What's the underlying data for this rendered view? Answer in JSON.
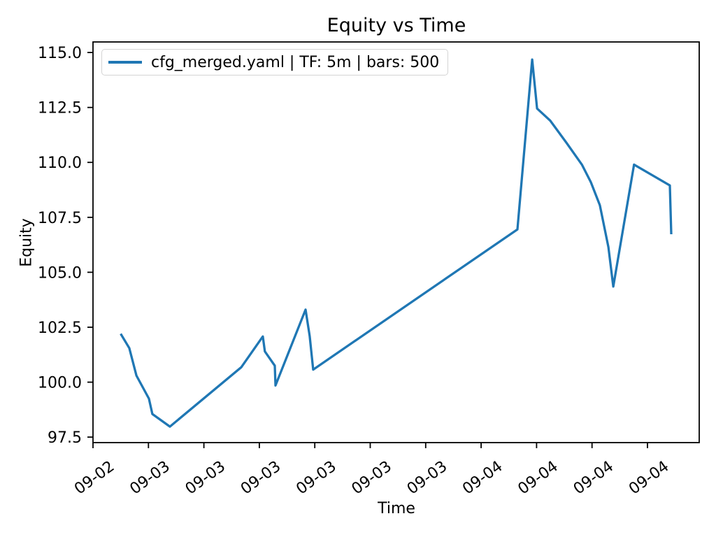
{
  "chart_data": {
    "type": "line",
    "title": "Equity vs Time",
    "xlabel": "Time",
    "ylabel": "Equity",
    "legend_position": "upper left",
    "grid": false,
    "line_color": "#1f77b4",
    "x_tick_labels": [
      "09-02",
      "09-03",
      "09-03",
      "09-03",
      "09-03",
      "09-03",
      "09-03",
      "09-04",
      "09-04",
      "09-04",
      "09-04"
    ],
    "x_tick_times": [
      "09-02 20:00",
      "09-03 00:00",
      "09-03 04:00",
      "09-03 08:00",
      "09-03 12:00",
      "09-03 16:00",
      "09-03 20:00",
      "09-04 00:00",
      "09-04 04:00",
      "09-04 08:00",
      "09-04 12:00"
    ],
    "y_ticks": [
      97.5,
      100.0,
      102.5,
      105.0,
      107.5,
      110.0,
      112.5,
      115.0
    ],
    "y_tick_labels": [
      "97.5",
      "100.0",
      "102.5",
      "105.0",
      "107.5",
      "110.0",
      "112.5",
      "115.0"
    ],
    "xlim": [
      "09-02 20:00",
      "09-04 15:44"
    ],
    "ylim": [
      97.25,
      115.48
    ],
    "series": [
      {
        "name": "cfg_merged.yaml | TF: 5m | bars: 500",
        "points": [
          [
            "09-02 22:00",
            102.2
          ],
          [
            "09-02 22:37",
            101.55
          ],
          [
            "09-02 23:08",
            100.3
          ],
          [
            "09-03 00:02",
            99.25
          ],
          [
            "09-03 00:17",
            98.55
          ],
          [
            "09-03 01:33",
            97.98
          ],
          [
            "09-03 06:42",
            100.68
          ],
          [
            "09-03 08:15",
            102.08
          ],
          [
            "09-03 08:24",
            101.4
          ],
          [
            "09-03 09:07",
            100.75
          ],
          [
            "09-03 09:10",
            99.85
          ],
          [
            "09-03 11:20",
            103.3
          ],
          [
            "09-03 11:38",
            102.1
          ],
          [
            "09-03 11:53",
            100.57
          ],
          [
            "09-04 02:37",
            106.95
          ],
          [
            "09-04 03:41",
            114.68
          ],
          [
            "09-04 04:02",
            112.45
          ],
          [
            "09-04 04:59",
            111.9
          ],
          [
            "09-04 06:09",
            110.9
          ],
          [
            "09-04 07:16",
            109.9
          ],
          [
            "09-04 07:55",
            109.1
          ],
          [
            "09-04 08:34",
            108.05
          ],
          [
            "09-04 09:11",
            106.15
          ],
          [
            "09-04 09:32",
            104.35
          ],
          [
            "09-04 11:02",
            109.9
          ],
          [
            "09-04 13:37",
            108.95
          ],
          [
            "09-04 13:43",
            106.73
          ]
        ]
      }
    ]
  }
}
